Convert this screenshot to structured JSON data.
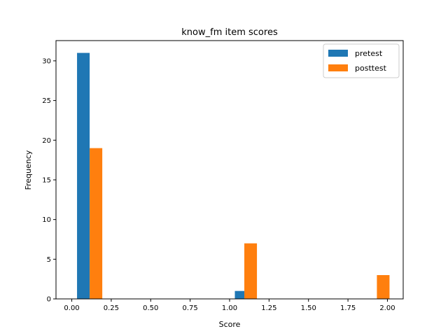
{
  "chart_data": {
    "type": "bar",
    "title": "know_fm item scores",
    "xlabel": "Score",
    "ylabel": "Frequency",
    "xlim": [
      -0.1,
      2.1
    ],
    "ylim": [
      0,
      32.55
    ],
    "xticks": [
      0.0,
      0.25,
      0.5,
      0.75,
      1.0,
      1.25,
      1.5,
      1.75,
      2.0
    ],
    "xtick_labels": [
      "0.00",
      "0.25",
      "0.50",
      "0.75",
      "1.00",
      "1.25",
      "1.50",
      "1.75",
      "2.00"
    ],
    "yticks": [
      0,
      5,
      10,
      15,
      20,
      25,
      30
    ],
    "ytick_labels": [
      "0",
      "5",
      "10",
      "15",
      "20",
      "25",
      "30"
    ],
    "legend_position": "top-right",
    "grid": false,
    "series": [
      {
        "name": "pretest",
        "color": "#1f77b4",
        "bars": [
          {
            "x0": 0.0333,
            "x1": 0.1133,
            "value": 31
          },
          {
            "x0": 1.0333,
            "x1": 1.1133,
            "value": 1
          }
        ]
      },
      {
        "name": "posttest",
        "color": "#ff7f0e",
        "bars": [
          {
            "x0": 0.1133,
            "x1": 0.1933,
            "value": 19
          },
          {
            "x0": 1.0933,
            "x1": 1.1733,
            "value": 7
          },
          {
            "x0": 1.9333,
            "x1": 2.0133,
            "value": 3
          }
        ]
      }
    ]
  }
}
